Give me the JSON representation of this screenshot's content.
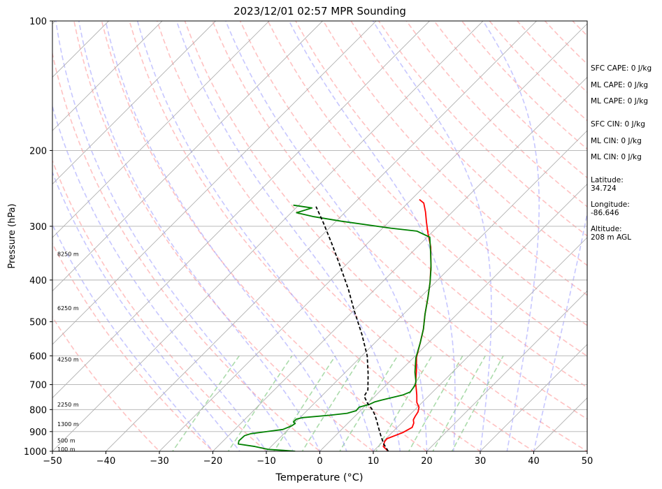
{
  "chart_data": {
    "type": "line",
    "subtype": "skew-t log-p sounding",
    "title": "2023/12/01 02:57 MPR Sounding",
    "xlabel": "Temperature (°C)",
    "ylabel": "Pressure (hPa)",
    "xlim": [
      -50,
      50
    ],
    "ylim": [
      1000,
      100
    ],
    "y_scale": "log",
    "x_ticks": [
      -50,
      -40,
      -30,
      -20,
      -10,
      0,
      10,
      20,
      30,
      40,
      50
    ],
    "y_ticks": [
      100,
      200,
      300,
      400,
      500,
      600,
      700,
      800,
      900,
      1000
    ],
    "grid": true,
    "series": [
      {
        "name": "",
        "color": "#ff0000",
        "style": "solid",
        "points": [
          [
            12.8,
            1000
          ],
          [
            11.0,
            975
          ],
          [
            10.3,
            950
          ],
          [
            10.2,
            935
          ],
          [
            12.0,
            905
          ],
          [
            12.8,
            880
          ],
          [
            12.3,
            860
          ],
          [
            11.6,
            845
          ],
          [
            11.3,
            830
          ],
          [
            11.0,
            810
          ],
          [
            10.3,
            790
          ],
          [
            9.0,
            770
          ],
          [
            7.6,
            740
          ],
          [
            6.3,
            715
          ],
          [
            5.2,
            695
          ],
          [
            3.0,
            650
          ],
          [
            0.5,
            605
          ],
          [
            -1.5,
            560
          ],
          [
            -3.5,
            520
          ],
          [
            -6.0,
            480
          ],
          [
            -8.5,
            440
          ],
          [
            -11.0,
            405
          ],
          [
            -14.0,
            370
          ],
          [
            -17.5,
            335
          ],
          [
            -20.5,
            312
          ],
          [
            -23.0,
            293
          ],
          [
            -25.0,
            278
          ],
          [
            -27.0,
            265
          ],
          [
            -28.5,
            260
          ]
        ]
      },
      {
        "name": "",
        "color": "#008000",
        "style": "solid",
        "points": [
          [
            -4.6,
            1000
          ],
          [
            -7.0,
            995
          ],
          [
            -10.0,
            990
          ],
          [
            -13.0,
            975
          ],
          [
            -16.6,
            962
          ],
          [
            -17.1,
            945
          ],
          [
            -17.0,
            920
          ],
          [
            -16.2,
            910
          ],
          [
            -11.0,
            890
          ],
          [
            -10.0,
            872
          ],
          [
            -9.8,
            862
          ],
          [
            -10.4,
            855
          ],
          [
            -10.4,
            842
          ],
          [
            -9.5,
            835
          ],
          [
            -5.0,
            825
          ],
          [
            -2.0,
            816
          ],
          [
            -0.8,
            805
          ],
          [
            -0.9,
            790
          ],
          [
            0.5,
            778
          ],
          [
            1.0,
            768
          ],
          [
            2.0,
            760
          ],
          [
            5.0,
            740
          ],
          [
            5.8,
            728
          ],
          [
            5.5,
            705
          ],
          [
            5.0,
            690
          ],
          [
            3.0,
            655
          ],
          [
            0.5,
            607
          ],
          [
            -1.5,
            560
          ],
          [
            -3.5,
            520
          ],
          [
            -6.0,
            480
          ],
          [
            -8.5,
            440
          ],
          [
            -11.0,
            405
          ],
          [
            -13.5,
            375
          ],
          [
            -16.5,
            345
          ],
          [
            -19.5,
            318
          ],
          [
            -23.0,
            308
          ],
          [
            -28.5,
            303
          ],
          [
            -39.0,
            292
          ],
          [
            -45.0,
            285
          ],
          [
            -49.0,
            279
          ],
          [
            -47.0,
            272
          ],
          [
            -51.0,
            268
          ]
        ]
      },
      {
        "name": "",
        "color": "#000000",
        "style": "dashed",
        "points": [
          [
            12.8,
            1000
          ],
          [
            10.5,
            960
          ],
          [
            8.5,
            920
          ],
          [
            6.5,
            880
          ],
          [
            4.7,
            845
          ],
          [
            3.3,
            820
          ],
          [
            2.0,
            800
          ],
          [
            -0.3,
            770
          ],
          [
            -2.0,
            745
          ],
          [
            -2.5,
            720
          ],
          [
            -5.5,
            660
          ],
          [
            -9.0,
            600
          ],
          [
            -14.0,
            535
          ],
          [
            -20.0,
            470
          ],
          [
            -25.0,
            420
          ],
          [
            -31.0,
            370
          ],
          [
            -36.5,
            330
          ],
          [
            -42.0,
            295
          ],
          [
            -46.5,
            270
          ]
        ]
      }
    ],
    "height_labels": [
      {
        "text": "100 m",
        "p": 989
      },
      {
        "text": "500 m",
        "p": 943
      },
      {
        "text": "1300 m",
        "p": 864
      },
      {
        "text": "2250 m",
        "p": 779
      },
      {
        "text": "4250 m",
        "p": 612
      },
      {
        "text": "6250 m",
        "p": 465
      },
      {
        "text": "8250 m",
        "p": 348
      }
    ],
    "annotations": [
      "SFC CAPE: 0 J/kg",
      "ML CAPE: 0 J/kg",
      "ML CAPE: 0 J/kg",
      "SFC CIN: 0 J/kg",
      "ML CIN: 0 J/kg",
      "ML CIN: 0 J/kg",
      "Latitude:",
      "34.724",
      "Longitude:",
      "-86.646",
      "Altitude:",
      "208 m AGL"
    ],
    "background_lines": {
      "isotherm_color": "#b0b0b0",
      "dry_adiabat_color": "#ff9999",
      "moist_adiabat_color": "#9999ff",
      "mixing_ratio_color": "#88cc88"
    }
  }
}
